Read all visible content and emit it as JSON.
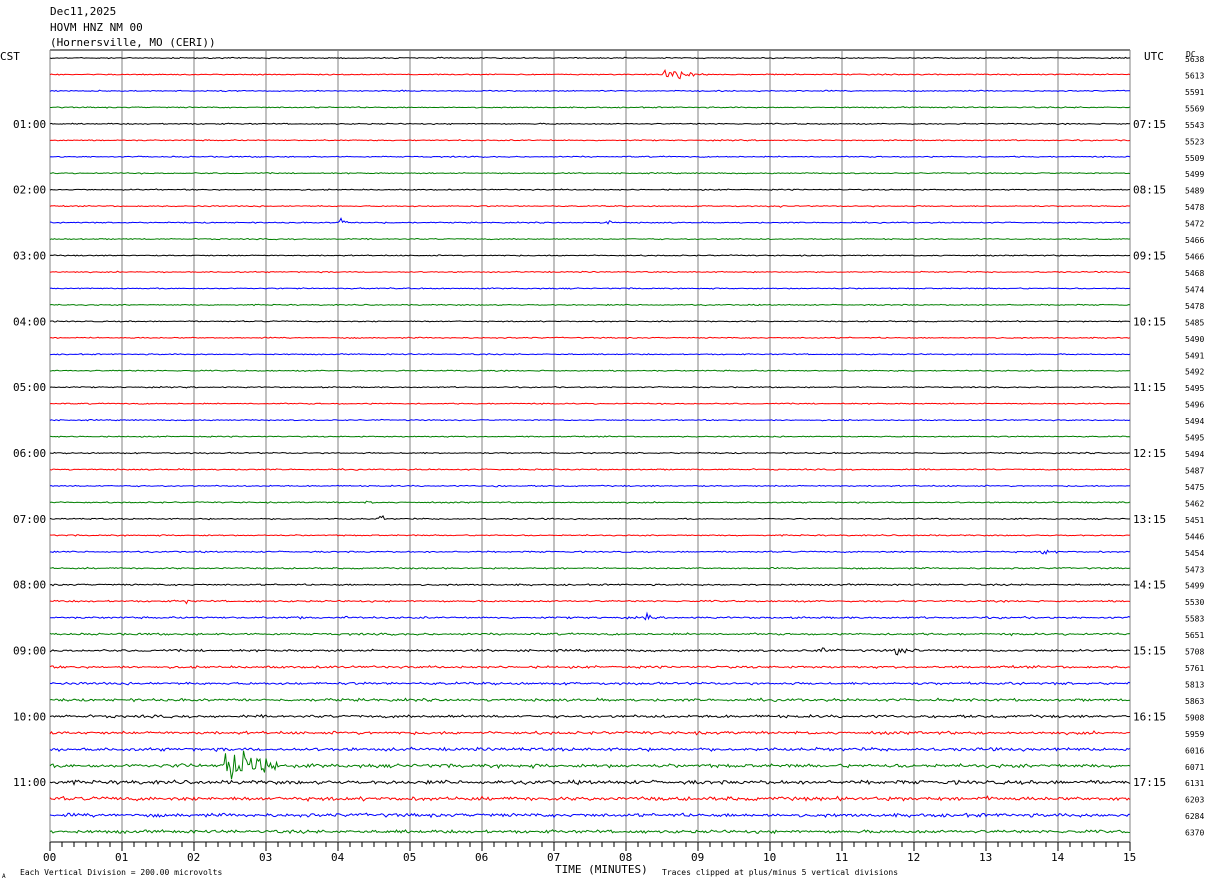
{
  "header": {
    "date": "Dec11,2025",
    "station": "HOVM HNZ NM 00",
    "location": "(Hornersville, MO (CERI))"
  },
  "left_tz": "CST",
  "right_tz": "UTC",
  "dc_label": "DC",
  "footer": {
    "scale": "Each Vertical Division =  200.00 microvolts",
    "clip": "Traces clipped at plus/minus 5 vertical divisions",
    "mark": "A"
  },
  "chart_data": {
    "type": "line",
    "title": "",
    "xlabel": "TIME (MINUTES)",
    "ylabel": "",
    "xlim": [
      0,
      15
    ],
    "x_ticks": [
      "00",
      "01",
      "02",
      "03",
      "04",
      "05",
      "06",
      "07",
      "08",
      "09",
      "10",
      "11",
      "12",
      "13",
      "14",
      "15"
    ],
    "grid": true,
    "trace_minutes": 15,
    "trace_colors": [
      "#000000",
      "#ff0000",
      "#0000ff",
      "#007f00"
    ],
    "left_time_labels": [
      {
        "row": 4,
        "text": "01:00"
      },
      {
        "row": 8,
        "text": "02:00"
      },
      {
        "row": 12,
        "text": "03:00"
      },
      {
        "row": 16,
        "text": "04:00"
      },
      {
        "row": 20,
        "text": "05:00"
      },
      {
        "row": 24,
        "text": "06:00"
      },
      {
        "row": 28,
        "text": "07:00"
      },
      {
        "row": 32,
        "text": "08:00"
      },
      {
        "row": 36,
        "text": "09:00"
      },
      {
        "row": 40,
        "text": "10:00"
      },
      {
        "row": 44,
        "text": "11:00"
      }
    ],
    "right_time_labels": [
      {
        "row": 4,
        "text": "07:15"
      },
      {
        "row": 8,
        "text": "08:15"
      },
      {
        "row": 12,
        "text": "09:15"
      },
      {
        "row": 16,
        "text": "10:15"
      },
      {
        "row": 20,
        "text": "11:15"
      },
      {
        "row": 24,
        "text": "12:15"
      },
      {
        "row": 28,
        "text": "13:15"
      },
      {
        "row": 32,
        "text": "14:15"
      },
      {
        "row": 36,
        "text": "15:15"
      },
      {
        "row": 40,
        "text": "16:15"
      },
      {
        "row": 44,
        "text": "17:15"
      }
    ],
    "dc_offsets": [
      "5638",
      "5613",
      "5591",
      "5569",
      "5543",
      "5523",
      "5509",
      "5499",
      "5489",
      "5478",
      "5472",
      "5466",
      "5466",
      "5468",
      "5474",
      "5478",
      "5485",
      "5490",
      "5491",
      "5492",
      "5495",
      "5496",
      "5494",
      "5495",
      "5494",
      "5487",
      "5475",
      "5462",
      "5451",
      "5446",
      "5454",
      "5473",
      "5499",
      "5530",
      "5583",
      "5651",
      "5708",
      "5761",
      "5813",
      "5863",
      "5908",
      "5959",
      "6016",
      "6071",
      "6131",
      "6203",
      "6284",
      "6370"
    ],
    "noise_levels": [
      0.8,
      0.8,
      0.8,
      0.8,
      0.8,
      0.8,
      0.8,
      0.8,
      0.8,
      0.8,
      0.8,
      0.8,
      0.8,
      0.8,
      0.8,
      0.8,
      0.8,
      0.8,
      0.8,
      0.8,
      0.8,
      0.8,
      0.8,
      0.8,
      0.9,
      0.9,
      0.9,
      0.9,
      0.9,
      0.9,
      1.0,
      1.0,
      1.1,
      1.2,
      1.3,
      1.4,
      1.5,
      1.6,
      1.7,
      1.8,
      1.9,
      2.0,
      2.2,
      2.5,
      2.6,
      2.6,
      2.4,
      2.2
    ],
    "events": [
      {
        "row": 1,
        "minute": 8.55,
        "amplitude": 9,
        "duration": 0.6
      },
      {
        "row": 9,
        "minute": 10.15,
        "amplitude": 2,
        "duration": 0.1
      },
      {
        "row": 10,
        "minute": 4.05,
        "amplitude": 10,
        "duration": 0.08
      },
      {
        "row": 10,
        "minute": 4.6,
        "amplitude": 4,
        "duration": 0.1
      },
      {
        "row": 10,
        "minute": 7.75,
        "amplitude": 8,
        "duration": 0.08
      },
      {
        "row": 26,
        "minute": 6.2,
        "amplitude": 3,
        "duration": 0.1
      },
      {
        "row": 27,
        "minute": 4.4,
        "amplitude": 4,
        "duration": 0.1
      },
      {
        "row": 28,
        "minute": 4.6,
        "amplitude": 10,
        "duration": 0.08
      },
      {
        "row": 30,
        "minute": 13.8,
        "amplitude": 5,
        "duration": 0.25
      },
      {
        "row": 33,
        "minute": 1.9,
        "amplitude": 5,
        "duration": 0.06
      },
      {
        "row": 34,
        "minute": 3.45,
        "amplitude": 4,
        "duration": 0.1
      },
      {
        "row": 34,
        "minute": 4.1,
        "amplitude": 3,
        "duration": 0.15
      },
      {
        "row": 34,
        "minute": 8.3,
        "amplitude": 9,
        "duration": 0.05
      },
      {
        "row": 36,
        "minute": 10.7,
        "amplitude": 7,
        "duration": 0.15
      },
      {
        "row": 36,
        "minute": 11.75,
        "amplitude": 7,
        "duration": 0.35
      },
      {
        "row": 39,
        "minute": 3.85,
        "amplitude": 3,
        "duration": 0.1
      },
      {
        "row": 43,
        "minute": 1.85,
        "amplitude": 12,
        "duration": 0.06
      },
      {
        "row": 43,
        "minute": 2.45,
        "amplitude": 32,
        "duration": 0.9
      },
      {
        "row": 45,
        "minute": 13.0,
        "amplitude": 4,
        "duration": 0.2
      }
    ]
  }
}
